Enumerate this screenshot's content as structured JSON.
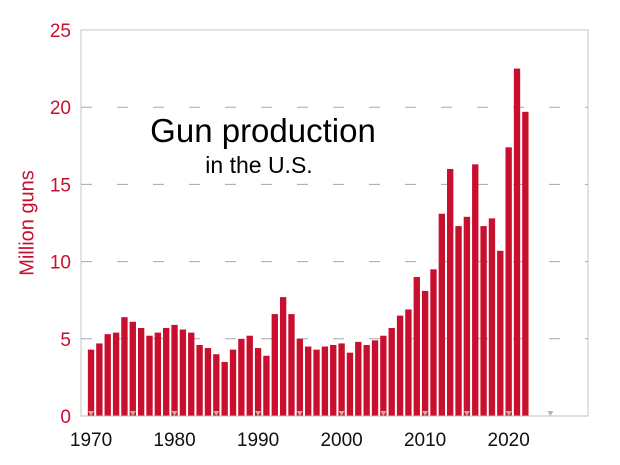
{
  "chart_data": {
    "type": "bar",
    "title": "Gun production",
    "subtitle": "in the U.S.",
    "ylabel": "Million guns",
    "xlabel": "",
    "ylim": [
      0,
      25
    ],
    "y_ticks": [
      0,
      5,
      10,
      15,
      20,
      25
    ],
    "x_ticks": [
      1970,
      1980,
      1990,
      2000,
      2010,
      2020
    ],
    "x_range": [
      1968.8,
      2029.5
    ],
    "grid": "horizontal dashed",
    "legend": "none",
    "colors": {
      "bar": "#c8102e",
      "axis_text": "#c8102e",
      "grid": "#a8a8a8",
      "tick_marker": "#b4b4b4"
    },
    "categories": [
      1970,
      1971,
      1972,
      1973,
      1974,
      1975,
      1976,
      1977,
      1978,
      1979,
      1980,
      1981,
      1982,
      1983,
      1984,
      1985,
      1986,
      1987,
      1988,
      1989,
      1990,
      1991,
      1992,
      1993,
      1994,
      1995,
      1996,
      1997,
      1998,
      1999,
      2000,
      2001,
      2002,
      2003,
      2004,
      2005,
      2006,
      2007,
      2008,
      2009,
      2010,
      2011,
      2012,
      2013,
      2014,
      2015,
      2016,
      2017,
      2018,
      2019,
      2020,
      2021,
      2022
    ],
    "values": [
      4.3,
      4.7,
      5.3,
      5.4,
      6.4,
      6.1,
      5.7,
      5.2,
      5.4,
      5.7,
      5.9,
      5.6,
      5.4,
      4.6,
      4.4,
      4.0,
      3.5,
      4.3,
      5.0,
      5.2,
      4.4,
      3.9,
      6.6,
      7.7,
      6.6,
      5.0,
      4.5,
      4.3,
      4.5,
      4.6,
      4.7,
      4.1,
      4.8,
      4.6,
      4.9,
      5.2,
      5.7,
      6.5,
      6.9,
      9.0,
      8.1,
      9.5,
      13.1,
      16.0,
      12.3,
      12.9,
      16.3,
      12.3,
      12.8,
      10.7,
      17.4,
      22.5,
      19.7
    ]
  }
}
